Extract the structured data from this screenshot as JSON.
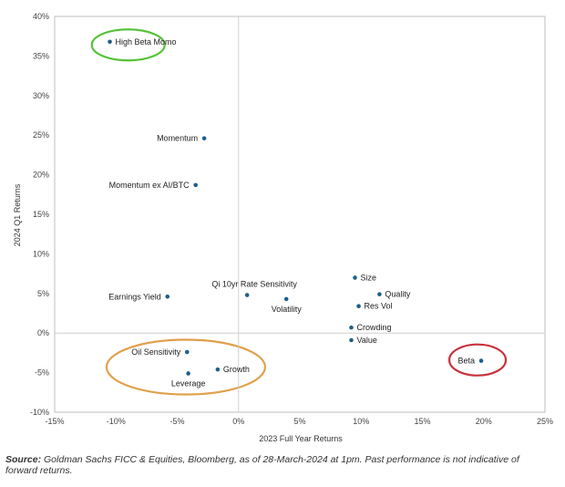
{
  "chart_data": {
    "type": "scatter",
    "xlabel": "2023 Full Year Returns",
    "ylabel": "2024 Q1 Returns",
    "xlim": [
      -15,
      25
    ],
    "ylim": [
      -10,
      40
    ],
    "x_ticks": [
      "-15%",
      "-10%",
      "-5%",
      "0%",
      "5%",
      "10%",
      "15%",
      "20%",
      "25%"
    ],
    "y_ticks": [
      "-10%",
      "-5%",
      "0%",
      "5%",
      "10%",
      "15%",
      "20%",
      "25%",
      "30%",
      "35%",
      "40%"
    ],
    "grid": "off",
    "point_color": "#1f5f8b",
    "points": [
      {
        "label": "High Beta Momo",
        "x": -10.5,
        "y": 36.8,
        "label_side": "right"
      },
      {
        "label": "Momentum",
        "x": -2.8,
        "y": 24.6,
        "label_side": "left"
      },
      {
        "label": "Momentum ex AI/BTC",
        "x": -3.5,
        "y": 18.7,
        "label_side": "left"
      },
      {
        "label": "Earnings Yield",
        "x": -5.8,
        "y": 4.6,
        "label_side": "left"
      },
      {
        "label": "Qi 10yr Rate Sensitivity",
        "x": 0.7,
        "y": 4.8,
        "label_side": "above"
      },
      {
        "label": "Volatility",
        "x": 3.9,
        "y": 4.3,
        "label_side": "below"
      },
      {
        "label": "Size",
        "x": 9.5,
        "y": 7.0,
        "label_side": "right"
      },
      {
        "label": "Quality",
        "x": 11.5,
        "y": 4.9,
        "label_side": "right"
      },
      {
        "label": "Res Vol",
        "x": 9.8,
        "y": 3.4,
        "label_side": "right"
      },
      {
        "label": "Crowding",
        "x": 9.2,
        "y": 0.7,
        "label_side": "right"
      },
      {
        "label": "Value",
        "x": 9.2,
        "y": -0.9,
        "label_side": "right"
      },
      {
        "label": "Oil Sensitivity",
        "x": -4.2,
        "y": -2.4,
        "label_side": "left"
      },
      {
        "label": "Growth",
        "x": -1.7,
        "y": -4.6,
        "label_side": "right"
      },
      {
        "label": "Leverage",
        "x": -4.1,
        "y": -5.1,
        "label_side": "below"
      },
      {
        "label": "Beta",
        "x": 19.8,
        "y": -3.5,
        "label_side": "left"
      }
    ],
    "highlights": [
      {
        "around": "High Beta Momo",
        "color": "#55c23a"
      },
      {
        "around": "Oil Sensitivity, Leverage, Growth",
        "color": "#e0a04c"
      },
      {
        "around": "Beta",
        "color": "#c8323c"
      }
    ]
  },
  "source": {
    "label": "Source:",
    "text": "Goldman Sachs FICC & Equities, Bloomberg, as of 28-March-2024 at 1pm. Past performance is not indicative of forward returns."
  }
}
